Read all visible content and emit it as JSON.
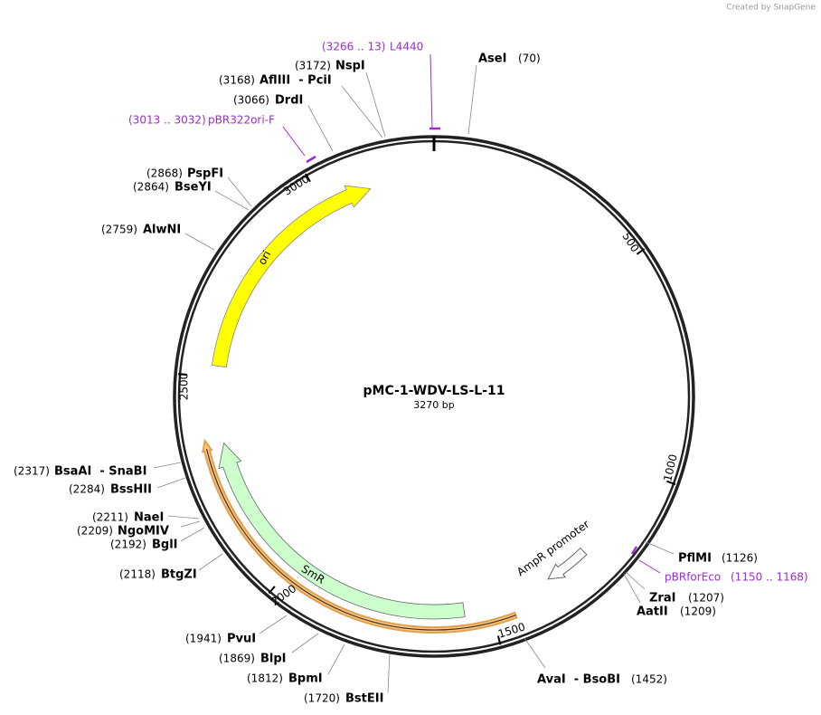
{
  "header": {
    "credit": "Created by SnapGene"
  },
  "map": {
    "title": "pMC-1-WDV-LS-L-11",
    "size": "3270 bp",
    "scale_ticks": [
      500,
      1000,
      1500,
      2000,
      2500,
      3000
    ],
    "features": [
      {
        "name": "ori"
      },
      {
        "name": "SmR"
      },
      {
        "name": "AmpR promoter"
      }
    ],
    "primers": [
      {
        "name": "L4440",
        "range": "(3266 .. 13)"
      },
      {
        "name": "pBR322ori-F",
        "range": "(3013 .. 3032)"
      },
      {
        "name": "pBRforEco",
        "range": "(1150 .. 1168)"
      }
    ],
    "enzymes": [
      {
        "name": "AseI",
        "position": "(70)"
      },
      {
        "name": "NspI",
        "position": "(3172)"
      },
      {
        "name": "AflIII  - PciI",
        "position": "(3168)"
      },
      {
        "name": "DrdI",
        "position": "(3066)"
      },
      {
        "name": "PspFI",
        "position": "(2868)"
      },
      {
        "name": "BseYI",
        "position": "(2864)"
      },
      {
        "name": "AlwNI",
        "position": "(2759)"
      },
      {
        "name": "BsaAI  - SnaBI",
        "position": "(2317)"
      },
      {
        "name": "BssHII",
        "position": "(2284)"
      },
      {
        "name": "NaeI",
        "position": "(2211)"
      },
      {
        "name": "NgoMIV",
        "position": "(2209)"
      },
      {
        "name": "BglI",
        "position": "(2192)"
      },
      {
        "name": "BtgZI",
        "position": "(2118)"
      },
      {
        "name": "PvuI",
        "position": "(1941)"
      },
      {
        "name": "BlpI",
        "position": "(1869)"
      },
      {
        "name": "BpmI",
        "position": "(1812)"
      },
      {
        "name": "BstEII",
        "position": "(1720)"
      },
      {
        "name": "AvaI  - BsoBI",
        "position": "(1452)"
      },
      {
        "name": "ZraI",
        "position": "(1207)"
      },
      {
        "name": "AatII",
        "position": "(1209)"
      },
      {
        "name": "PflMI",
        "position": "(1126)"
      }
    ]
  }
}
